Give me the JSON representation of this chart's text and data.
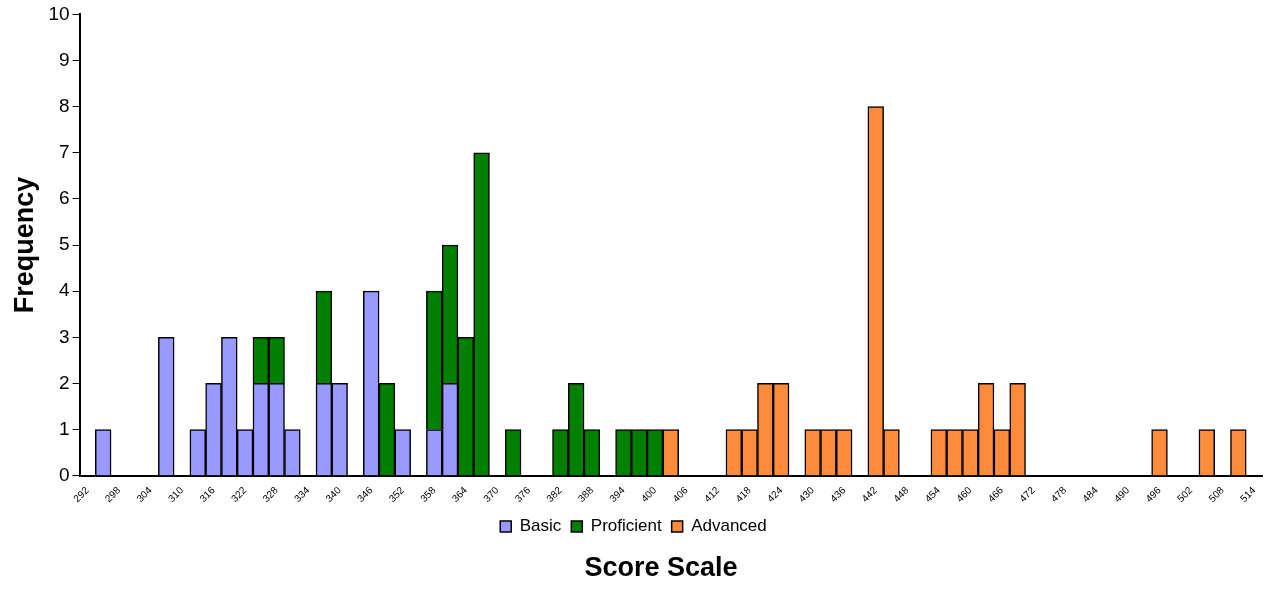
{
  "chart_data": {
    "type": "bar",
    "stacked": true,
    "xlabel": "Score Scale",
    "ylabel": "Frequency",
    "legend": "bottom",
    "grid": false,
    "categories": [
      "292",
      null,
      "298",
      null,
      "304",
      null,
      "310",
      null,
      "316",
      null,
      "322",
      null,
      "328",
      null,
      "334",
      null,
      "340",
      null,
      "346",
      null,
      "352",
      null,
      "358",
      null,
      "364",
      null,
      "370",
      null,
      "376",
      null,
      "382",
      null,
      "388",
      null,
      "394",
      null,
      "400",
      null,
      "406",
      null,
      "412",
      null,
      "418",
      null,
      "424",
      null,
      "430",
      null,
      "436",
      null,
      "442",
      null,
      "448",
      null,
      "454",
      null,
      "460",
      null,
      "466",
      null,
      "472",
      null,
      "478",
      null,
      "484",
      null,
      "490",
      null,
      "496",
      null,
      "502",
      null,
      "508",
      null,
      "514"
    ],
    "ylim": [
      0,
      10
    ],
    "yticks": [
      0,
      1,
      2,
      3,
      4,
      5,
      6,
      7,
      8,
      9,
      10
    ],
    "series": [
      {
        "name": "Basic",
        "color": "#9999ff",
        "values": [
          null,
          1,
          null,
          null,
          null,
          3,
          null,
          1,
          2,
          3,
          1,
          2,
          2,
          1,
          null,
          2,
          2,
          null,
          4,
          null,
          1,
          null,
          1,
          2,
          null,
          null,
          null,
          null,
          null,
          null,
          null,
          null,
          null,
          null,
          null,
          null,
          null,
          null,
          null,
          null,
          null,
          null,
          null,
          null,
          null,
          null,
          null,
          null,
          null,
          null,
          null,
          null,
          null,
          null,
          null,
          null,
          null,
          null,
          null,
          null,
          null,
          null,
          null,
          null,
          null,
          null,
          null,
          null,
          null,
          null,
          null,
          null,
          null,
          null,
          null
        ]
      },
      {
        "name": "Proficient",
        "color": "#008000",
        "values": [
          null,
          null,
          null,
          null,
          null,
          null,
          null,
          null,
          null,
          null,
          null,
          1,
          1,
          null,
          null,
          2,
          null,
          null,
          null,
          2,
          null,
          null,
          3,
          3,
          3,
          7,
          null,
          1,
          null,
          null,
          1,
          2,
          1,
          null,
          1,
          1,
          1,
          null,
          null,
          null,
          null,
          null,
          null,
          null,
          null,
          null,
          null,
          null,
          null,
          null,
          null,
          null,
          null,
          null,
          null,
          null,
          null,
          null,
          null,
          null,
          null,
          null,
          null,
          null,
          null,
          null,
          null,
          null,
          null,
          null,
          null,
          null,
          null,
          null,
          null
        ]
      },
      {
        "name": "Advanced",
        "color": "#ff8c3a",
        "values": [
          null,
          null,
          null,
          null,
          null,
          null,
          null,
          null,
          null,
          null,
          null,
          null,
          null,
          null,
          null,
          null,
          null,
          null,
          null,
          null,
          null,
          null,
          null,
          null,
          null,
          null,
          null,
          null,
          null,
          null,
          null,
          null,
          null,
          null,
          null,
          null,
          null,
          1,
          null,
          null,
          null,
          1,
          1,
          2,
          2,
          null,
          1,
          1,
          1,
          null,
          8,
          1,
          null,
          null,
          1,
          1,
          1,
          2,
          1,
          2,
          null,
          null,
          null,
          null,
          null,
          null,
          null,
          null,
          1,
          null,
          null,
          1,
          null,
          1,
          null
        ]
      }
    ]
  }
}
